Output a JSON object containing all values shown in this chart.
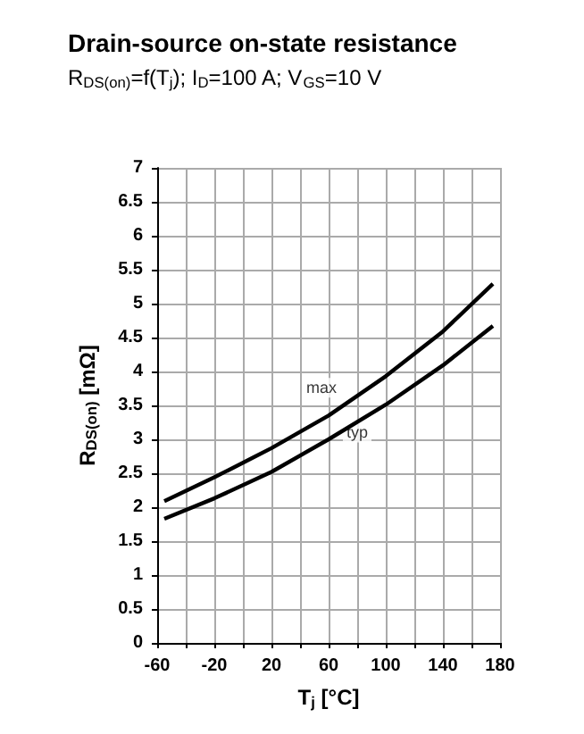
{
  "chart_data": {
    "type": "line",
    "title": "Drain-source on-state resistance",
    "subtitle": "R$_{DS(on)}$=f(T$_{j}$); I$_{D}$=100 A; V$_{GS}$=10 V",
    "xlabel": "T$_{j}$ [°C]",
    "ylabel": "R$_{DS(on)}$ [mΩ]",
    "x": [
      -55,
      -20,
      20,
      60,
      100,
      140,
      175
    ],
    "series": [
      {
        "color": "#000000",
        "values": [
          2.09,
          2.44,
          2.87,
          3.35,
          3.93,
          4.59,
          5.29
        ]
      },
      {
        "color": "#000000",
        "values": [
          1.83,
          2.13,
          2.52,
          3.0,
          3.51,
          4.09,
          4.67
        ]
      }
    ],
    "annotations": [
      {
        "text": "max",
        "x": 55,
        "y": 3.76
      },
      {
        "text": "typ",
        "x": 80,
        "y": 3.1
      }
    ],
    "xlim": [
      -60,
      180
    ],
    "xticks": [
      -60,
      {
        "value": -40,
        "label": null
      },
      -20,
      {
        "value": 0,
        "label": null
      },
      20,
      {
        "value": 40,
        "label": null
      },
      60,
      {
        "value": 80,
        "label": null
      },
      100,
      {
        "value": 120,
        "label": null
      },
      140,
      {
        "value": 160,
        "label": null
      },
      180
    ],
    "ylim": [
      0,
      7
    ],
    "yticks": [
      0,
      0.5,
      1,
      1.5,
      2,
      2.5,
      3,
      3.5,
      4,
      4.5,
      5,
      5.5,
      6,
      6.5,
      7
    ],
    "grid": true,
    "marker": "none",
    "line_style": "solid"
  }
}
